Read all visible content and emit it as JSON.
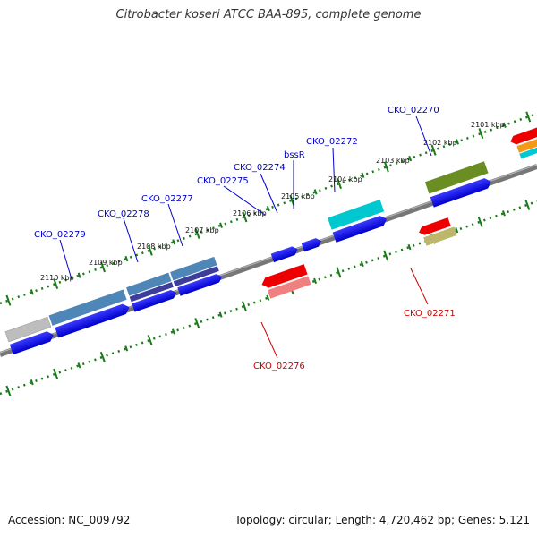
{
  "title": "Citrobacter koseri ATCC BAA-895, complete genome",
  "footer": {
    "accession": "Accession: NC_009792",
    "topology": "Topology: circular; Length: 4,720,462 bp; Genes: 5,121"
  },
  "colors": {
    "forward_label": "#0000cc",
    "reverse_label": "#cc0000",
    "ruler": "#1a7a1a",
    "backbone": "#888888"
  },
  "kbp_labels": [
    "2101 kbp",
    "2102 kbp",
    "2103 kbp",
    "2104 kbp",
    "2105 kbp",
    "2106 kbp",
    "2107 kbp",
    "2108 kbp",
    "2109 kbp",
    "2110 kbp"
  ],
  "gene_labels": {
    "forward": [
      "CKO_02270",
      "CKO_02272",
      "bssR",
      "CKO_02274",
      "CKO_02275",
      "CKO_02277",
      "CKO_02278",
      "CKO_02279"
    ],
    "reverse": [
      "CKO_02271",
      "CKO_02276"
    ]
  }
}
